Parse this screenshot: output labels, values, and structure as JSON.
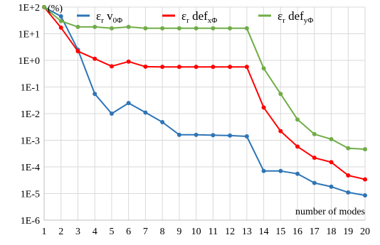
{
  "chart_data": {
    "type": "line",
    "y_scale": "log",
    "ylabel": "(%)",
    "xlabel": "number of modes",
    "grid": true,
    "legend_position": "top",
    "x": [
      1,
      2,
      3,
      4,
      5,
      6,
      7,
      8,
      9,
      10,
      11,
      12,
      13,
      14,
      15,
      16,
      17,
      18,
      19,
      20
    ],
    "ytick_labels": [
      "1E-6",
      "1E-5",
      "1E-4",
      "1E-3",
      "1E-2",
      "1E-1",
      "1E+0",
      "1E+1",
      "1E+2"
    ],
    "ylim": [
      1e-06,
      100
    ],
    "series": [
      {
        "name": "εr v0Φ",
        "legend": {
          "eps": "ε",
          "sub1": "r",
          "main": " v",
          "sub2": "0Φ"
        },
        "color": "#2E75B6",
        "values": [
          100,
          45,
          2.5,
          0.055,
          0.01,
          0.025,
          0.011,
          0.0048,
          0.0016,
          0.0016,
          0.00155,
          0.0015,
          0.0014,
          7e-05,
          7e-05,
          5.5e-05,
          2.5e-05,
          1.8e-05,
          1.1e-05,
          8.5e-06
        ]
      },
      {
        "name": "εr defxΦ",
        "legend": {
          "eps": "ε",
          "sub1": "r",
          "main": " def",
          "sub2": "xΦ"
        },
        "color": "#FF0000",
        "values": [
          100,
          17,
          2.2,
          1.15,
          0.6,
          0.9,
          0.58,
          0.57,
          0.57,
          0.57,
          0.57,
          0.57,
          0.57,
          0.017,
          0.0022,
          0.00058,
          0.00022,
          0.00015,
          4.8e-05,
          3.4e-05
        ]
      },
      {
        "name": "εr defyΦ",
        "legend": {
          "eps": "ε",
          "sub1": "r",
          "main": " def",
          "sub2": "yΦ"
        },
        "color": "#70AD47",
        "values": [
          100,
          30,
          18,
          18,
          16,
          18,
          16,
          16,
          16,
          16,
          16,
          16,
          16,
          0.5,
          0.055,
          0.006,
          0.0017,
          0.0011,
          0.0005,
          0.00046
        ]
      }
    ]
  }
}
